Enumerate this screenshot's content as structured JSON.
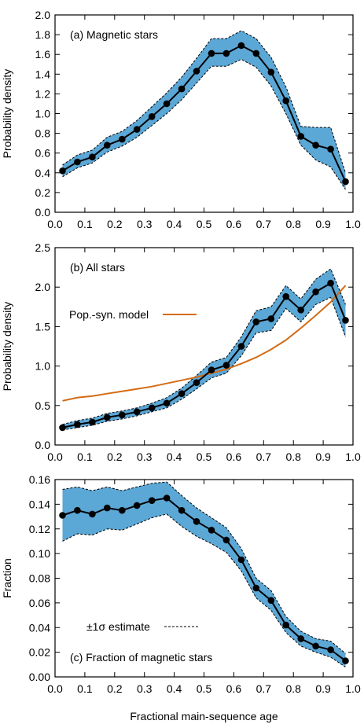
{
  "colors": {
    "band": "#5ba7d6",
    "line": "#000000",
    "model": "#d46b14",
    "axis": "#000000"
  },
  "chart_data": [
    {
      "type": "line",
      "panel": "a",
      "label": "(a) Magnetic stars",
      "ylabel": "Probability density",
      "xlabel": "",
      "xlim": [
        0.0,
        1.0
      ],
      "ylim": [
        0.0,
        2.0
      ],
      "xticks": [
        "0.0",
        "0.1",
        "0.2",
        "0.3",
        "0.4",
        "0.5",
        "0.6",
        "0.7",
        "0.8",
        "0.9",
        "1.0"
      ],
      "yticks": [
        "0.0",
        "0.2",
        "0.4",
        "0.6",
        "0.8",
        "1.0",
        "1.2",
        "1.4",
        "1.6",
        "1.8",
        "2.0"
      ],
      "x": [
        0.025,
        0.075,
        0.125,
        0.175,
        0.225,
        0.275,
        0.325,
        0.375,
        0.425,
        0.475,
        0.525,
        0.575,
        0.625,
        0.675,
        0.725,
        0.775,
        0.825,
        0.875,
        0.925,
        0.975
      ],
      "y": [
        0.42,
        0.51,
        0.56,
        0.68,
        0.74,
        0.84,
        0.97,
        1.1,
        1.25,
        1.43,
        1.61,
        1.61,
        1.69,
        1.61,
        1.42,
        1.13,
        0.77,
        0.68,
        0.64,
        0.31
      ],
      "upper": [
        0.48,
        0.58,
        0.63,
        0.76,
        0.82,
        0.93,
        1.07,
        1.21,
        1.37,
        1.56,
        1.76,
        1.76,
        1.84,
        1.76,
        1.57,
        1.27,
        0.87,
        0.86,
        0.86,
        0.4
      ],
      "lower": [
        0.36,
        0.45,
        0.5,
        0.61,
        0.67,
        0.76,
        0.88,
        1.0,
        1.14,
        1.31,
        1.48,
        1.48,
        1.55,
        1.47,
        1.28,
        1.0,
        0.68,
        0.53,
        0.46,
        0.23
      ],
      "grid": false
    },
    {
      "type": "line",
      "panel": "b",
      "label": "(b) All stars",
      "ylabel": "Probability density",
      "xlabel": "",
      "xlim": [
        0.0,
        1.0
      ],
      "ylim": [
        0.0,
        2.5
      ],
      "xticks": [
        "0.0",
        "0.1",
        "0.2",
        "0.3",
        "0.4",
        "0.5",
        "0.6",
        "0.7",
        "0.8",
        "0.9",
        "1.0"
      ],
      "yticks": [
        "0.0",
        "0.5",
        "1.0",
        "1.5",
        "2.0",
        "2.5"
      ],
      "x": [
        0.025,
        0.075,
        0.125,
        0.175,
        0.225,
        0.275,
        0.325,
        0.375,
        0.425,
        0.475,
        0.525,
        0.575,
        0.625,
        0.675,
        0.725,
        0.775,
        0.825,
        0.875,
        0.925,
        0.975
      ],
      "y": [
        0.22,
        0.26,
        0.29,
        0.35,
        0.38,
        0.42,
        0.47,
        0.53,
        0.65,
        0.79,
        0.95,
        1.01,
        1.25,
        1.56,
        1.6,
        1.88,
        1.71,
        1.94,
        2.05,
        1.58
      ],
      "upper": [
        0.26,
        0.31,
        0.34,
        0.4,
        0.43,
        0.47,
        0.53,
        0.6,
        0.72,
        0.88,
        1.05,
        1.11,
        1.37,
        1.7,
        1.75,
        2.02,
        1.85,
        2.1,
        2.23,
        1.78
      ],
      "lower": [
        0.19,
        0.22,
        0.25,
        0.3,
        0.33,
        0.37,
        0.42,
        0.47,
        0.58,
        0.71,
        0.85,
        0.91,
        1.13,
        1.42,
        1.45,
        1.73,
        1.56,
        1.78,
        1.87,
        1.37
      ],
      "model": {
        "name": "Pop.-syn. model",
        "x": [
          0.025,
          0.075,
          0.125,
          0.175,
          0.225,
          0.275,
          0.325,
          0.375,
          0.425,
          0.475,
          0.525,
          0.575,
          0.625,
          0.675,
          0.725,
          0.775,
          0.825,
          0.875,
          0.925,
          0.975
        ],
        "y": [
          0.56,
          0.6,
          0.62,
          0.65,
          0.68,
          0.71,
          0.74,
          0.78,
          0.82,
          0.86,
          0.91,
          0.96,
          1.03,
          1.11,
          1.21,
          1.33,
          1.48,
          1.64,
          1.81,
          2.02
        ]
      },
      "legend": "center-left",
      "grid": false
    },
    {
      "type": "line",
      "panel": "c",
      "label": "(c) Fraction of magnetic stars",
      "ylabel": "Fraction",
      "xlabel": "Fractional main-sequence age",
      "xlim": [
        0.0,
        1.0
      ],
      "ylim": [
        0.0,
        0.16
      ],
      "xticks": [
        "0.0",
        "0.1",
        "0.2",
        "0.3",
        "0.4",
        "0.5",
        "0.6",
        "0.7",
        "0.8",
        "0.9",
        "1.0"
      ],
      "yticks": [
        "0.00",
        "0.02",
        "0.04",
        "0.06",
        "0.08",
        "0.10",
        "0.12",
        "0.14",
        "0.16"
      ],
      "x": [
        0.025,
        0.075,
        0.125,
        0.175,
        0.225,
        0.275,
        0.325,
        0.375,
        0.425,
        0.475,
        0.525,
        0.575,
        0.625,
        0.675,
        0.725,
        0.775,
        0.825,
        0.875,
        0.925,
        0.975
      ],
      "y": [
        0.131,
        0.135,
        0.132,
        0.137,
        0.135,
        0.139,
        0.143,
        0.145,
        0.135,
        0.126,
        0.119,
        0.111,
        0.095,
        0.072,
        0.062,
        0.042,
        0.031,
        0.025,
        0.022,
        0.013
      ],
      "upper": [
        0.152,
        0.154,
        0.151,
        0.154,
        0.151,
        0.154,
        0.157,
        0.158,
        0.147,
        0.137,
        0.129,
        0.121,
        0.104,
        0.08,
        0.07,
        0.049,
        0.037,
        0.031,
        0.029,
        0.019
      ],
      "lower": [
        0.11,
        0.116,
        0.115,
        0.12,
        0.119,
        0.124,
        0.129,
        0.132,
        0.122,
        0.114,
        0.108,
        0.101,
        0.086,
        0.064,
        0.054,
        0.036,
        0.025,
        0.02,
        0.016,
        0.008
      ],
      "legend_entry": "±1σ estimate",
      "legend": "bottom-left",
      "grid": false
    }
  ]
}
